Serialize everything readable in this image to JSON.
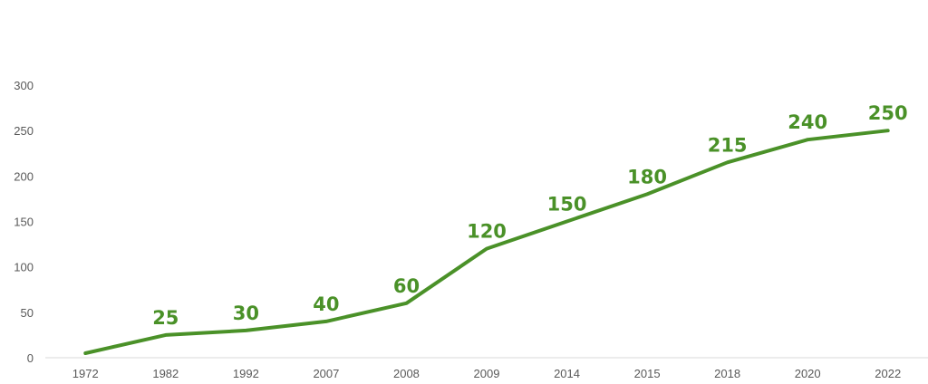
{
  "chart_data": {
    "type": "line",
    "categories": [
      "1972",
      "1982",
      "1992",
      "2007",
      "2008",
      "2009",
      "2014",
      "2015",
      "2018",
      "2020",
      "2022"
    ],
    "series": [
      {
        "values": [
          5,
          25,
          30,
          40,
          60,
          120,
          150,
          180,
          215,
          240,
          250
        ],
        "data_labels": [
          "",
          "25",
          "30",
          "40",
          "60",
          "120",
          "150",
          "180",
          "215",
          "240",
          "250"
        ]
      }
    ],
    "title": "",
    "xlabel": "",
    "ylabel": "",
    "ylim": [
      0,
      300
    ],
    "yticks": [
      "0",
      "50",
      "100",
      "150",
      "200",
      "250",
      "300"
    ],
    "grid": false,
    "legend": "none",
    "colors": {
      "line": "#4a9128",
      "label": "#4a9128",
      "axis": "#d9d9d9",
      "tick_text": "#595959"
    }
  }
}
